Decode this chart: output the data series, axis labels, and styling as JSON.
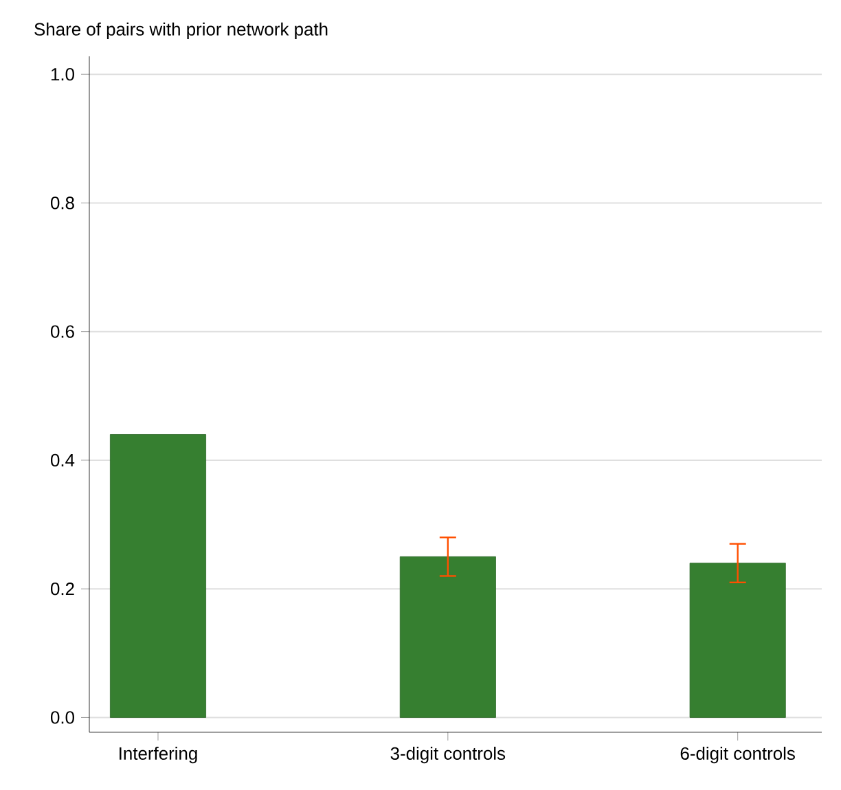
{
  "chart_data": {
    "type": "bar",
    "ylabel": "Share of pairs with prior network path",
    "categories": [
      "Interfering",
      "3-digit controls",
      "6-digit controls"
    ],
    "values": [
      0.44,
      0.25,
      0.24
    ],
    "errors": [
      null,
      [
        0.22,
        0.28
      ],
      [
        0.21,
        0.27
      ]
    ],
    "color": "#367f30",
    "ylim": [
      -0.023,
      1.028
    ],
    "yticks": [
      {
        "value": 0,
        "label": "0.0"
      },
      {
        "value": 0.2,
        "label": "0.2"
      },
      {
        "value": 0.4,
        "label": "0.4"
      },
      {
        "value": 0.6,
        "label": "0.6"
      },
      {
        "value": 0.8,
        "label": "0.8"
      },
      {
        "value": 1,
        "label": "1.0"
      }
    ],
    "grid": "y"
  }
}
